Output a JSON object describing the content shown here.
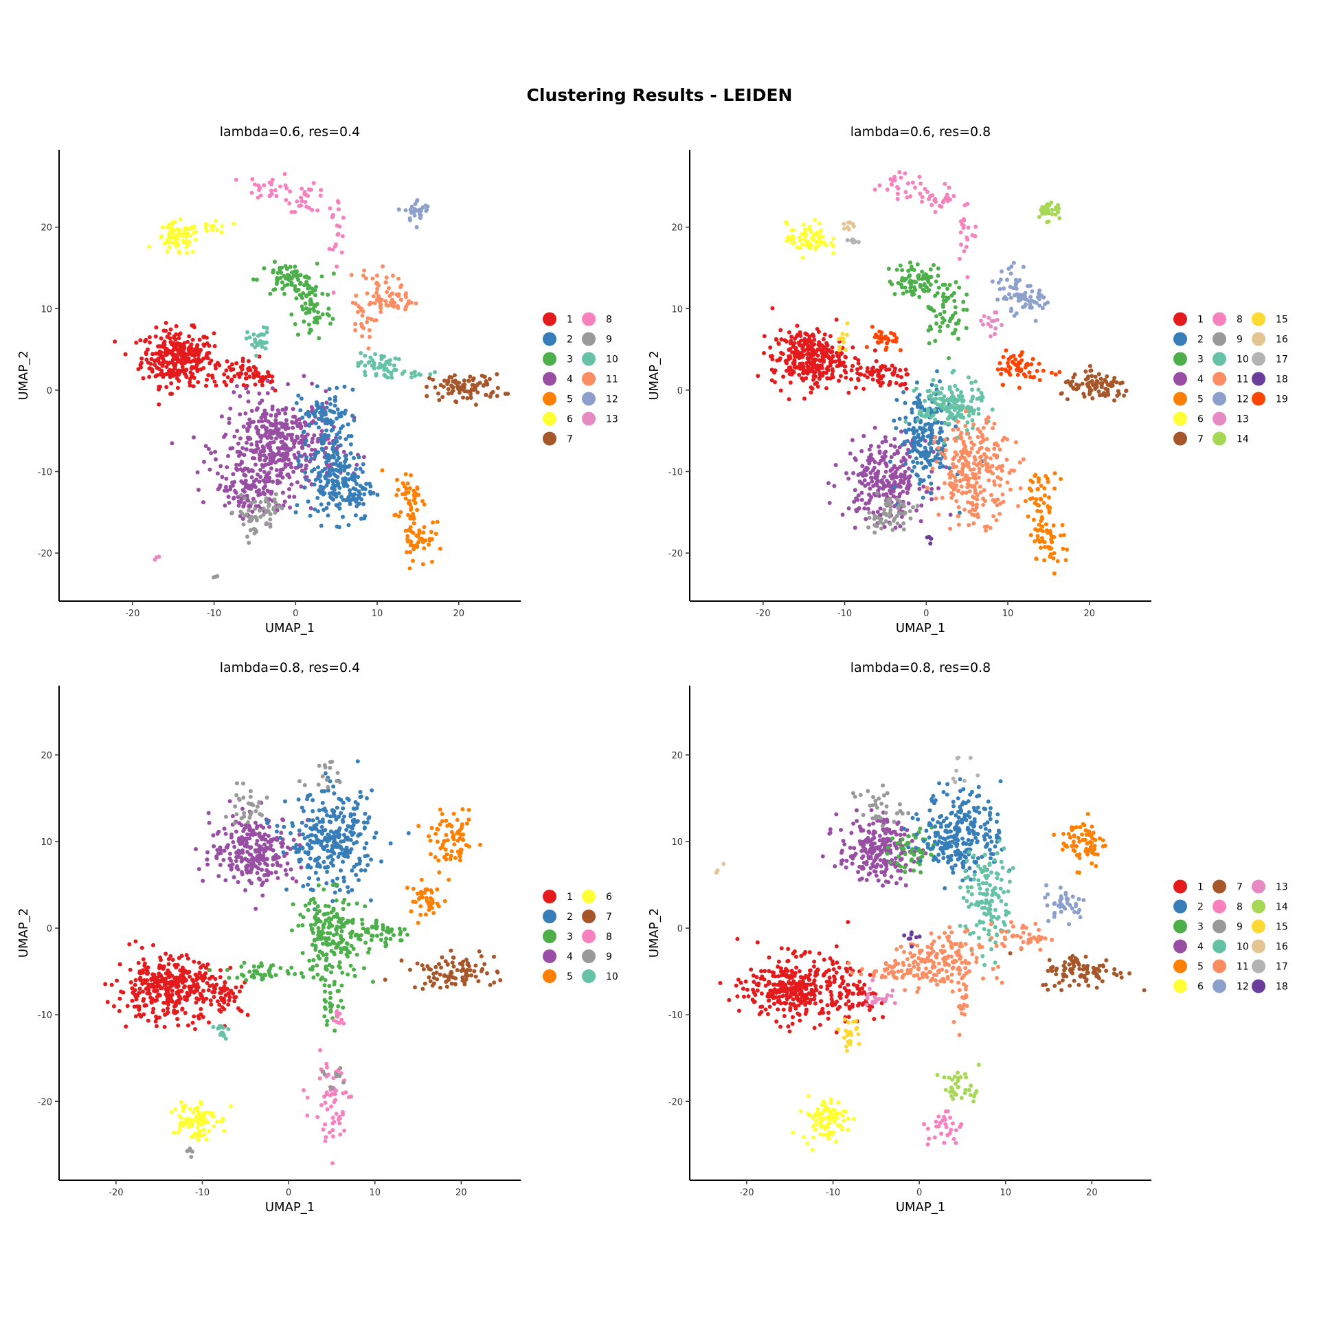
{
  "title": "Clustering Results - LEIDEN",
  "palette": {
    "1": "#E41A1C",
    "2": "#377EB8",
    "3": "#4DAF4A",
    "4": "#984EA3",
    "5": "#FF7F00",
    "6": "#FFFF33",
    "7": "#A65628",
    "8": "#F781BF",
    "9": "#999999",
    "10": "#66C2A5",
    "11": "#FC8D62",
    "12": "#8DA0CB",
    "13": "#E78AC3",
    "14": "#A6D854",
    "15": "#FFD92F",
    "16": "#E5C494",
    "17": "#B3B3B3",
    "18": "#6A3D9A",
    "19": "#FF4500"
  },
  "chart_data": [
    {
      "type": "scatter",
      "title": "lambda=0.6, res=0.4",
      "xlabel": "UMAP_1",
      "ylabel": "UMAP_2",
      "xlim": [
        -29,
        27.6
      ],
      "ylim": [
        -25.9,
        29.5
      ],
      "xticks": [
        -20,
        -10,
        0,
        10,
        20
      ],
      "yticks": [
        -20,
        -10,
        0,
        10,
        20
      ],
      "legend": [
        "1",
        "2",
        "3",
        "4",
        "5",
        "6",
        "7",
        "8",
        "9",
        "10",
        "11",
        "12",
        "13"
      ],
      "legend_rows": 7,
      "clusters": [
        [
          1,
          -14.5,
          4,
          2.2,
          1.7,
          300
        ],
        [
          1,
          -7,
          2,
          2,
          0.8,
          50
        ],
        [
          1,
          -4,
          1.5,
          1,
          0.8,
          20
        ],
        [
          6,
          -14.5,
          18.5,
          1.3,
          1,
          70
        ],
        [
          6,
          -10,
          20,
          1,
          0.6,
          15
        ],
        [
          8,
          -3,
          25,
          1.5,
          0.8,
          25
        ],
        [
          8,
          1.5,
          23.5,
          1.2,
          0.8,
          25
        ],
        [
          8,
          5,
          20,
          0.6,
          2,
          20
        ],
        [
          3,
          -1,
          13.5,
          1.8,
          1,
          70
        ],
        [
          3,
          2,
          10,
          1.2,
          2,
          60
        ],
        [
          12,
          15,
          22,
          0.8,
          0.7,
          30
        ],
        [
          11,
          10,
          12.5,
          1.2,
          1.5,
          40
        ],
        [
          11,
          12,
          11,
          1.5,
          0.8,
          30
        ],
        [
          11,
          8,
          8,
          0.8,
          1.5,
          20
        ],
        [
          10,
          10,
          3,
          1.2,
          0.8,
          50
        ],
        [
          10,
          -4.5,
          6,
          0.7,
          0.8,
          30
        ],
        [
          10,
          15,
          2,
          1.5,
          0.3,
          10
        ],
        [
          7,
          21,
          0.3,
          2.2,
          0.8,
          90
        ],
        [
          4,
          -2,
          -7,
          3.5,
          3,
          420
        ],
        [
          4,
          -6,
          -12,
          2,
          1.5,
          100
        ],
        [
          2,
          4,
          -8,
          1.5,
          4,
          150
        ],
        [
          2,
          6,
          -12,
          1.8,
          2,
          120
        ],
        [
          2,
          3,
          -3,
          1.2,
          1,
          40
        ],
        [
          5,
          14,
          -13,
          1,
          1.5,
          40
        ],
        [
          5,
          15,
          -18,
          1,
          1.8,
          50
        ],
        [
          9,
          -5,
          -15.5,
          1.2,
          1.2,
          40
        ],
        [
          9,
          -3,
          -14,
          1,
          0.8,
          15
        ],
        [
          9,
          -10,
          -23,
          0.3,
          0.3,
          3
        ],
        [
          13,
          -17,
          -20.5,
          0.3,
          0.3,
          3
        ]
      ]
    },
    {
      "type": "scatter",
      "title": "lambda=0.6, res=0.8",
      "xlabel": "UMAP_1",
      "ylabel": "UMAP_2",
      "xlim": [
        -29,
        27.6
      ],
      "ylim": [
        -25.9,
        29.5
      ],
      "xticks": [
        -20,
        -10,
        0,
        10,
        20
      ],
      "yticks": [
        -20,
        -10,
        0,
        10,
        20
      ],
      "legend": [
        "1",
        "2",
        "3",
        "4",
        "5",
        "6",
        "7",
        "8",
        "9",
        "10",
        "11",
        "12",
        "13",
        "14",
        "15",
        "16",
        "17",
        "18",
        "19"
      ],
      "legend_rows": 7,
      "clusters": [
        [
          1,
          -14.5,
          4,
          2.2,
          1.7,
          300
        ],
        [
          1,
          -7,
          2,
          2,
          0.8,
          50
        ],
        [
          1,
          -4,
          1.5,
          1,
          0.8,
          20
        ],
        [
          6,
          -14.5,
          18.5,
          1.3,
          1,
          70
        ],
        [
          16,
          -9.5,
          20.5,
          0.4,
          0.6,
          8
        ],
        [
          17,
          -9,
          18.5,
          0.5,
          0.4,
          8
        ],
        [
          8,
          -3,
          25,
          1.5,
          0.8,
          25
        ],
        [
          8,
          1.5,
          23.5,
          1.2,
          0.8,
          25
        ],
        [
          8,
          5,
          20,
          0.6,
          2,
          20
        ],
        [
          3,
          -1,
          13.5,
          1.8,
          1,
          70
        ],
        [
          3,
          2,
          10,
          1.2,
          2,
          60
        ],
        [
          14,
          15,
          22,
          0.8,
          0.7,
          30
        ],
        [
          12,
          11,
          12.5,
          1.2,
          1.5,
          40
        ],
        [
          12,
          12.5,
          11,
          1.5,
          0.8,
          30
        ],
        [
          13,
          8,
          8,
          0.7,
          0.8,
          15
        ],
        [
          19,
          -5,
          6,
          0.8,
          0.8,
          30
        ],
        [
          19,
          11,
          3,
          1.2,
          1,
          50
        ],
        [
          19,
          15,
          2,
          1.5,
          0.3,
          10
        ],
        [
          15,
          -10,
          6,
          0.4,
          0.8,
          10
        ],
        [
          7,
          21,
          0.3,
          2.2,
          0.8,
          90
        ],
        [
          4,
          -5,
          -11,
          2.5,
          2.5,
          250
        ],
        [
          2,
          0,
          -6,
          1.6,
          3,
          200
        ],
        [
          10,
          3,
          -2,
          2,
          1.6,
          150
        ],
        [
          11,
          6,
          -10,
          2.3,
          3,
          250
        ],
        [
          5,
          14,
          -13,
          1,
          1.5,
          40
        ],
        [
          5,
          15,
          -18,
          1,
          1.8,
          50
        ],
        [
          9,
          -5,
          -15.5,
          1.2,
          1.2,
          40
        ],
        [
          9,
          -3,
          -14,
          1,
          0.8,
          15
        ],
        [
          18,
          0.5,
          -18,
          0.3,
          0.5,
          4
        ]
      ]
    },
    {
      "type": "scatter",
      "title": "lambda=0.8, res=0.4",
      "xlabel": "UMAP_1",
      "ylabel": "UMAP_2",
      "xlim": [
        -26.6,
        26.9
      ],
      "ylim": [
        -29.1,
        28
      ],
      "xticks": [
        -20,
        -10,
        0,
        10,
        20
      ],
      "yticks": [
        -20,
        -10,
        0,
        10,
        20
      ],
      "legend": [
        "1",
        "2",
        "3",
        "4",
        "5",
        "6",
        "7",
        "8",
        "9",
        "10"
      ],
      "legend_rows": 5,
      "clusters": [
        [
          1,
          -14,
          -7,
          3,
          1.8,
          350
        ],
        [
          1,
          -7,
          -8,
          1.2,
          1,
          40
        ],
        [
          4,
          -4,
          9,
          2.5,
          2,
          250
        ],
        [
          2,
          5,
          10,
          2.5,
          2.8,
          300
        ],
        [
          3,
          5,
          -1,
          2,
          2.5,
          200
        ],
        [
          3,
          -3,
          -5,
          2,
          0.6,
          40
        ],
        [
          3,
          5,
          -8,
          0.6,
          2,
          30
        ],
        [
          3,
          11,
          -0.5,
          1.5,
          0.8,
          40
        ],
        [
          5,
          19,
          10,
          1.3,
          1.5,
          70
        ],
        [
          5,
          16,
          3,
          1.2,
          1,
          40
        ],
        [
          7,
          19,
          -5,
          2.5,
          1,
          90
        ],
        [
          8,
          5,
          -20,
          1.2,
          2.5,
          60
        ],
        [
          8,
          6,
          -10,
          0.3,
          0.5,
          10
        ],
        [
          6,
          -11,
          -22,
          1.3,
          1.2,
          90
        ],
        [
          10,
          -8,
          -12,
          0.5,
          0.6,
          15
        ],
        [
          9,
          -5,
          14,
          1.5,
          1.2,
          30
        ],
        [
          9,
          4,
          18,
          1.5,
          1,
          15
        ],
        [
          9,
          -11,
          -26,
          0.5,
          0.5,
          5
        ],
        [
          9,
          5,
          -17.5,
          0.7,
          1,
          10
        ]
      ]
    },
    {
      "type": "scatter",
      "title": "lambda=0.8, res=0.8",
      "xlabel": "UMAP_1",
      "ylabel": "UMAP_2",
      "xlim": [
        -26.6,
        26.9
      ],
      "ylim": [
        -29.1,
        28
      ],
      "xticks": [
        -20,
        -10,
        0,
        10,
        20
      ],
      "yticks": [
        -20,
        -10,
        0,
        10,
        20
      ],
      "legend": [
        "1",
        "2",
        "3",
        "4",
        "5",
        "6",
        "7",
        "8",
        "9",
        "10",
        "11",
        "12",
        "13",
        "14",
        "15",
        "16",
        "17",
        "18"
      ],
      "legend_rows": 6,
      "clusters": [
        [
          1,
          -14,
          -7,
          3,
          1.8,
          350
        ],
        [
          1,
          -7,
          -8,
          1.2,
          1,
          40
        ],
        [
          4,
          -5,
          9,
          2.2,
          1.8,
          220
        ],
        [
          3,
          -1,
          9,
          1.2,
          1.2,
          50
        ],
        [
          2,
          5,
          11,
          2.3,
          2.5,
          260
        ],
        [
          10,
          8,
          3,
          1.5,
          3,
          130
        ],
        [
          11,
          2,
          -4,
          2.5,
          1.7,
          150
        ],
        [
          11,
          -3,
          -5,
          2,
          0.6,
          40
        ],
        [
          11,
          5,
          -8,
          0.6,
          2,
          25
        ],
        [
          11,
          12,
          -1,
          1.5,
          0.8,
          40
        ],
        [
          5,
          19,
          10,
          1.3,
          1.5,
          70
        ],
        [
          12,
          17,
          3,
          1.2,
          1,
          40
        ],
        [
          7,
          19,
          -5,
          2.5,
          1,
          90
        ],
        [
          13,
          -5,
          -8,
          0.8,
          0.8,
          20
        ],
        [
          15,
          -8,
          -12,
          0.6,
          0.8,
          25
        ],
        [
          6,
          -11,
          -22,
          1.3,
          1.2,
          90
        ],
        [
          14,
          5,
          -18.5,
          1.2,
          1,
          35
        ],
        [
          8,
          3,
          -23,
          1,
          1.2,
          30
        ],
        [
          9,
          -5,
          14,
          1.5,
          1.2,
          30
        ],
        [
          16,
          -23,
          7,
          0.5,
          0.5,
          3
        ],
        [
          17,
          5,
          18,
          1,
          1,
          8
        ],
        [
          18,
          -1,
          -1,
          0.5,
          0.5,
          8
        ]
      ]
    }
  ]
}
